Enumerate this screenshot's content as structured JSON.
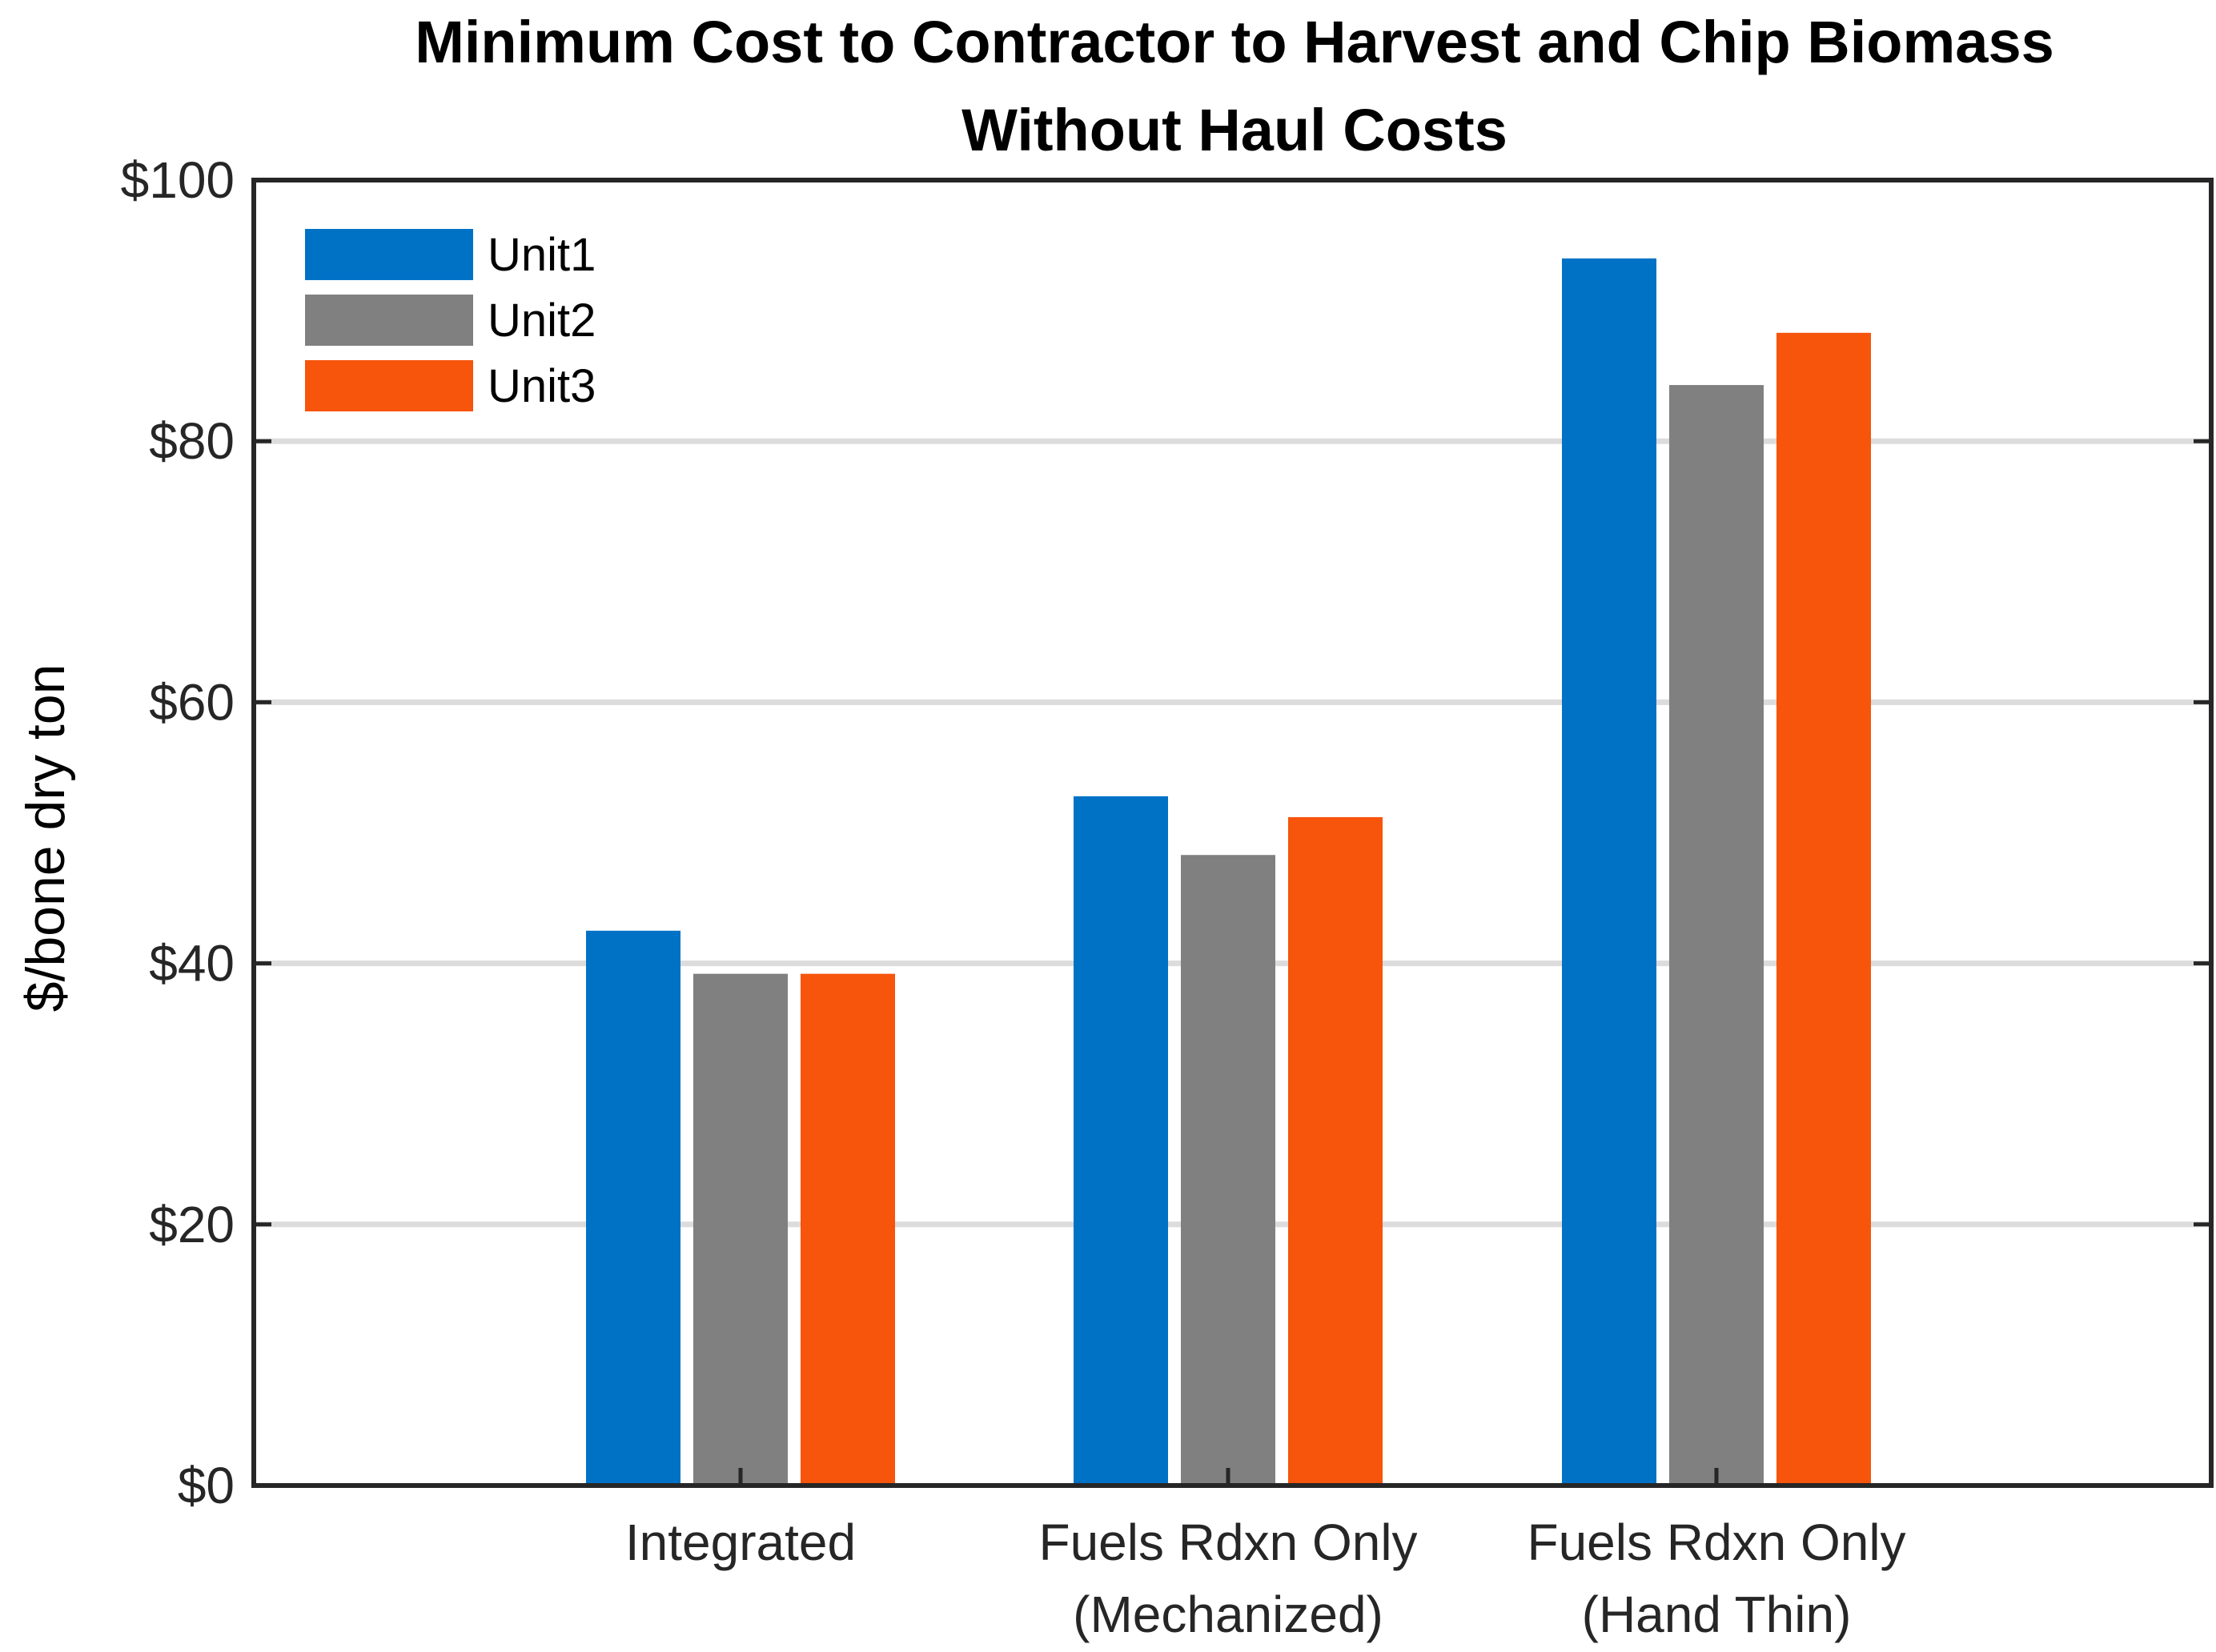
{
  "chart_data": {
    "type": "bar",
    "title": [
      "Minimum Cost to Contractor to Harvest and Chip  Biomass",
      "Without Haul Costs"
    ],
    "xlabel": "",
    "ylabel": "$/bone dry ton",
    "ylim": [
      0,
      100
    ],
    "yticks": [
      0,
      20,
      40,
      60,
      80,
      100
    ],
    "ytick_labels": [
      "$0",
      "$20",
      "$40",
      "$60",
      "$80",
      "$100"
    ],
    "grid": "horizontal",
    "legend_position": "top-left",
    "categories": [
      [
        "Integrated"
      ],
      [
        "Fuels Rdxn Only",
        "(Mechanized)"
      ],
      [
        "Fuels Rdxn Only",
        "(Hand Thin)"
      ]
    ],
    "series": [
      {
        "name": "Unit1",
        "color": "#0072C6",
        "values": [
          42.5,
          52.8,
          94.0
        ]
      },
      {
        "name": "Unit2",
        "color": "#808080",
        "values": [
          39.2,
          48.3,
          84.3
        ]
      },
      {
        "name": "Unit3",
        "color": "#F7540C",
        "values": [
          39.2,
          51.2,
          88.3
        ]
      }
    ]
  }
}
